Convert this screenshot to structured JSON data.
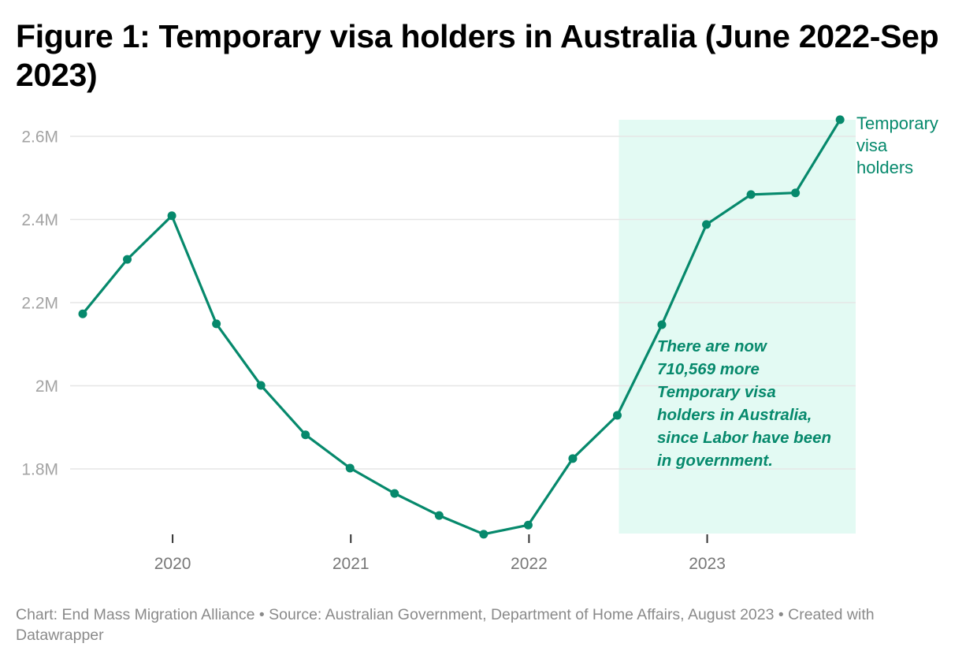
{
  "title": "Figure 1: Temporary visa holders in Australia (June 2022-Sep 2023)",
  "footer": "Chart: End Mass Migration Alliance • Source: Australian Government, Department of Home Affairs, August 2023 • Created with Datawrapper",
  "colors": {
    "line": "#06896c",
    "highlight_band": "#e3faf3",
    "gridline": "#e6e6e6",
    "axis_text": "#a3a3a3",
    "tick": "#333333"
  },
  "chart_data": {
    "type": "line",
    "title": "Figure 1: Temporary visa holders in Australia (June 2022-Sep 2023)",
    "xlabel": "",
    "ylabel": "",
    "ylim": [
      1.63,
      2.64
    ],
    "yticks": [
      1.8,
      2.0,
      2.2,
      2.4,
      2.6
    ],
    "ytick_labels": [
      "1.8M",
      "2M",
      "2.2M",
      "2.4M",
      "2.6M"
    ],
    "xticks": [
      "2020",
      "2021",
      "2022",
      "2023"
    ],
    "grid": true,
    "legend": "inline label at end of line",
    "x": [
      "Jun 2019",
      "Sep 2019",
      "Dec 2019",
      "Mar 2020",
      "Jun 2020",
      "Sep 2020",
      "Dec 2020",
      "Mar 2021",
      "Jun 2021",
      "Sep 2021",
      "Dec 2021",
      "Mar 2022",
      "Jun 2022",
      "Sep 2022",
      "Dec 2022",
      "Mar 2023",
      "Jun 2023",
      "Sep 2023"
    ],
    "series": [
      {
        "name": "Temporary visa holders",
        "values": [
          2.173,
          2.304,
          2.409,
          2.149,
          2.001,
          1.882,
          1.802,
          1.741,
          1.688,
          1.643,
          1.665,
          1.825,
          1.929,
          2.147,
          2.388,
          2.46,
          2.464,
          2.64
        ]
      }
    ],
    "highlight_range": {
      "from": "Jun 2022",
      "to": "Sep 2023"
    },
    "series_label": [
      "Temporary",
      "visa",
      "holders"
    ],
    "annotation": [
      "There are now",
      "710,569 more",
      "Temporary visa",
      "holders in Australia,",
      "since Labor have been",
      "in government."
    ]
  }
}
